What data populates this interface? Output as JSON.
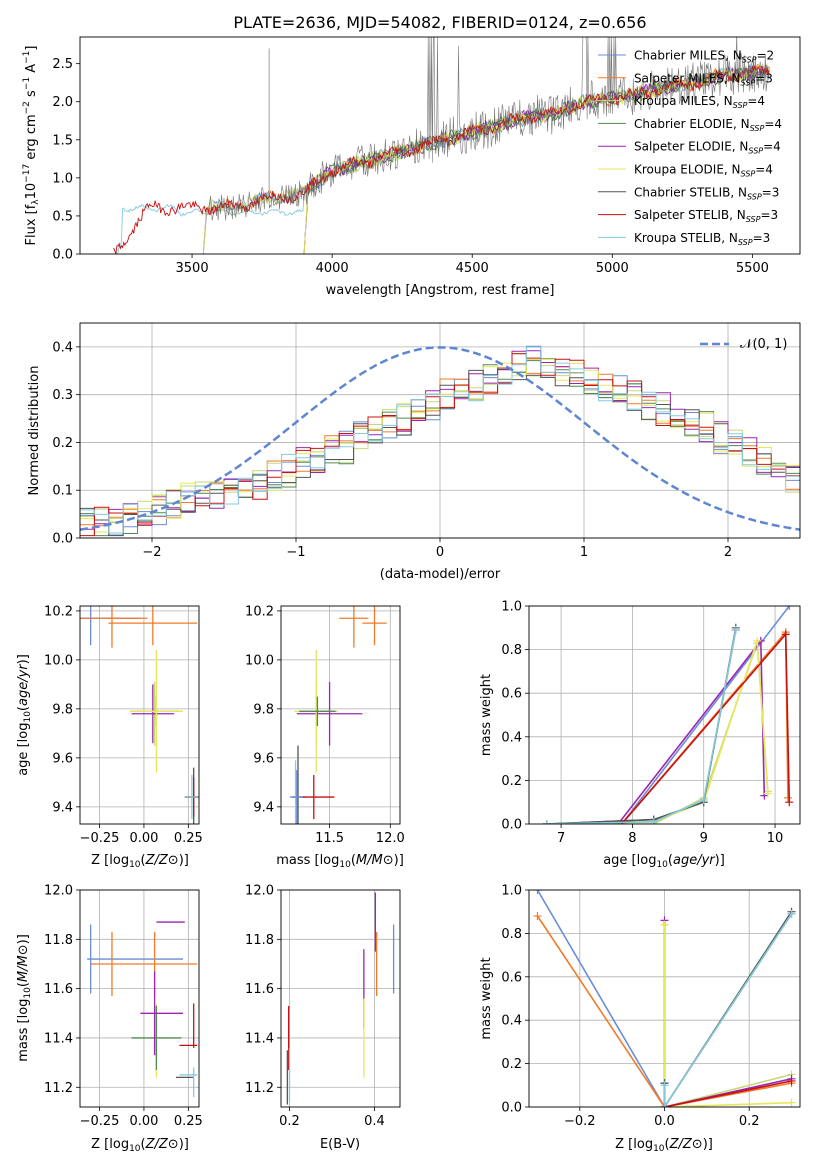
{
  "title": "PLATE=2636, MJD=54082, FIBERID=0124, z=0.656",
  "colors": {
    "chabrier_miles": "#6b8dd6",
    "salpeter_miles": "#f07b2a",
    "kroupa_miles": "#c7d77c",
    "chabrier_elodie": "#4f8a4f",
    "salpeter_elodie": "#9b27b0",
    "kroupa_elodie": "#e7e75a",
    "chabrier_stelib": "#555555",
    "salpeter_stelib": "#c81010",
    "kroupa_stelib": "#86c9dd",
    "normal_curve": "#5f86d2"
  },
  "chart_data": [
    {
      "id": "spectrum",
      "type": "line",
      "title": "PLATE=2636, MJD=54082, FIBERID=0124, z=0.656",
      "xlabel": "wavelength [Angstrom, rest frame]",
      "ylabel": "Flux [f_λ 10^-17 erg cm^-2 s^-1 A^-1]",
      "xlim": [
        3100,
        5670
      ],
      "ylim": [
        0,
        2.85
      ],
      "xticks": [
        3500,
        4000,
        4500,
        5000,
        5500
      ],
      "yticks": [
        0.0,
        0.5,
        1.0,
        1.5,
        2.0,
        2.5
      ],
      "legend": "upper right",
      "grid": false,
      "legend_entries": [
        {
          "key": "chabrier_miles",
          "label": "Chabrier MILES, N",
          "sub": "SSP",
          "suffix": "=2"
        },
        {
          "key": "salpeter_miles",
          "label": "Salpeter MILES, N",
          "sub": "SSP",
          "suffix": "=3"
        },
        {
          "key": "kroupa_miles",
          "label": "Kroupa MILES, N",
          "sub": "SSP",
          "suffix": "=4"
        },
        {
          "key": "chabrier_elodie",
          "label": "Chabrier ELODIE, N",
          "sub": "SSP",
          "suffix": "=4"
        },
        {
          "key": "salpeter_elodie",
          "label": "Salpeter ELODIE, N",
          "sub": "SSP",
          "suffix": "=4"
        },
        {
          "key": "kroupa_elodie",
          "label": "Kroupa ELODIE, N",
          "sub": "SSP",
          "suffix": "=4"
        },
        {
          "key": "chabrier_stelib",
          "label": "Chabrier STELIB, N",
          "sub": "SSP",
          "suffix": "=3"
        },
        {
          "key": "salpeter_stelib",
          "label": "Salpeter STELIB, N",
          "sub": "SSP",
          "suffix": "=3"
        },
        {
          "key": "kroupa_stelib",
          "label": "Kroupa STELIB, N",
          "sub": "SSP",
          "suffix": "=3"
        }
      ],
      "data_shape": {
        "x": [
          3220,
          3350,
          3500,
          3650,
          3800,
          3900,
          4000,
          4100,
          4200,
          4300,
          4400,
          4500,
          4600,
          4700,
          4800,
          4900,
          5000,
          5100,
          5200,
          5300,
          5400,
          5540
        ],
        "y": [
          0.0,
          0.62,
          0.6,
          0.62,
          0.75,
          0.8,
          1.1,
          1.2,
          1.3,
          1.4,
          1.5,
          1.6,
          1.7,
          1.8,
          1.85,
          2.0,
          2.05,
          2.1,
          2.2,
          2.25,
          2.35,
          2.4
        ]
      },
      "model_starts": {
        "kroupa_stelib": 3220,
        "chabrier_stelib": 3220,
        "salpeter_stelib": 3220,
        "salpeter_miles": 3540,
        "chabrier_miles": 3540,
        "kroupa_miles": 3540,
        "chabrier_elodie": 3900,
        "salpeter_elodie": 3900,
        "kroupa_elodie": 3900
      }
    },
    {
      "id": "residual_hist",
      "type": "step",
      "xlabel": "(data-model)/error",
      "ylabel": "Normed distribution",
      "xlim": [
        -2.5,
        2.5
      ],
      "ylim": [
        0,
        0.45
      ],
      "xticks": [
        -2,
        -1,
        0,
        1,
        2
      ],
      "xtick_labels": [
        "−2",
        "−1",
        "0",
        "1",
        "2"
      ],
      "yticks": [
        0.0,
        0.1,
        0.2,
        0.3,
        0.4
      ],
      "grid": true,
      "legend": "upper right",
      "normal_label": "N(0, 1)",
      "bin_width": 0.1,
      "base_histogram": [
        0.03,
        0.03,
        0.04,
        0.04,
        0.05,
        0.06,
        0.07,
        0.08,
        0.09,
        0.09,
        0.1,
        0.1,
        0.11,
        0.13,
        0.14,
        0.16,
        0.17,
        0.18,
        0.19,
        0.21,
        0.23,
        0.24,
        0.25,
        0.26,
        0.28,
        0.3,
        0.31,
        0.32,
        0.33,
        0.35,
        0.36,
        0.37,
        0.36,
        0.35,
        0.34,
        0.33,
        0.32,
        0.31,
        0.3,
        0.28,
        0.27,
        0.26,
        0.24,
        0.23,
        0.21,
        0.2,
        0.18,
        0.16,
        0.14,
        0.12
      ]
    },
    {
      "id": "z_age",
      "type": "errorbar",
      "xlabel": "Z [log10(Z/Z⊙)]",
      "ylabel": "age  [log10(age/yr)]",
      "xlim": [
        -0.36,
        0.31
      ],
      "ylim": [
        9.33,
        10.22
      ],
      "xticks": [
        -0.25,
        0.0,
        0.25
      ],
      "xtick_labels": [
        "−0.25",
        "0.00",
        "0.25"
      ],
      "yticks": [
        9.4,
        9.6,
        9.8,
        10.0,
        10.2
      ],
      "grid": true,
      "points": [
        {
          "key": "chabrier_miles",
          "x": -0.3,
          "xerr": 0.28,
          "y": 10.17,
          "yerr": 0.11
        },
        {
          "key": "salpeter_miles",
          "x": -0.18,
          "xerr": 0.2,
          "y": 10.17,
          "yerr": 0.12
        },
        {
          "key": "kroupa_miles",
          "x": 0.06,
          "xerr": 0.02,
          "y": 9.78,
          "yerr": 0.13
        },
        {
          "key": "chabrier_elodie",
          "x": 0.07,
          "xerr": 0.13,
          "y": 9.79,
          "yerr": 0.06
        },
        {
          "key": "salpeter_elodie",
          "x": 0.05,
          "xerr": 0.12,
          "y": 9.78,
          "yerr": 0.12
        },
        {
          "key": "kroupa_elodie",
          "x": 0.07,
          "xerr": 0.15,
          "y": 9.79,
          "yerr": 0.25
        },
        {
          "key": "chabrier_stelib",
          "x": 0.28,
          "xerr": 0.05,
          "y": 9.44,
          "yerr": 0.12
        },
        {
          "key": "salpeter_stelib",
          "x": 0.28,
          "xerr": 0.05,
          "y": 9.44,
          "yerr": 0.08
        },
        {
          "key": "kroupa_stelib",
          "x": 0.27,
          "xerr": 0.04,
          "y": 9.44,
          "yerr": 0.09
        },
        {
          "key": "salpeter_stelib_2",
          "color_key": "salpeter_miles",
          "x": 0.05,
          "xerr": 0.25,
          "y": 10.15,
          "yerr": 0.09,
          "alt": true
        }
      ]
    },
    {
      "id": "mass_age",
      "type": "errorbar",
      "xlabel": "mass [log10(M/M⊙)]",
      "xlim": [
        11.1,
        12.08
      ],
      "ylim": [
        9.33,
        10.22
      ],
      "xticks": [
        11.5,
        12.0
      ],
      "xtick_labels": [
        "11.5",
        "12.0"
      ],
      "yticks": [
        9.4,
        9.6,
        9.8,
        10.0,
        10.2
      ],
      "grid": true,
      "points": [
        {
          "key": "salpeter_miles",
          "x": 11.7,
          "xerr": 0.12,
          "y": 10.17,
          "yerr": 0.12
        },
        {
          "key": "salpeter_elodie",
          "x": 11.87,
          "xerr": 0.1,
          "y": 10.15,
          "yerr": 0.09,
          "color_key": "salpeter_miles"
        },
        {
          "key": "kroupa_miles",
          "x": 11.39,
          "xerr": 0.14,
          "y": 9.79,
          "yerr": 0.13
        },
        {
          "key": "salpeter_elodie_b",
          "color_key": "salpeter_elodie",
          "x": 11.5,
          "xerr": 0.27,
          "y": 9.78,
          "yerr": 0.13
        },
        {
          "key": "kroupa_elodie",
          "x": 11.39,
          "xerr": 0.18,
          "y": 9.79,
          "yerr": 0.25
        },
        {
          "key": "chabrier_elodie",
          "x": 11.4,
          "xerr": 0.15,
          "y": 9.79,
          "yerr": 0.06
        },
        {
          "key": "chabrier_stelib",
          "x": 11.24,
          "xerr": 0.06,
          "y": 9.44,
          "yerr": 0.21
        },
        {
          "key": "salpeter_stelib",
          "x": 11.37,
          "xerr": 0.17,
          "y": 9.44,
          "yerr": 0.09
        },
        {
          "key": "kroupa_stelib",
          "x": 11.22,
          "xerr": 0.05,
          "y": 9.44,
          "yerr": 0.15
        },
        {
          "key": "chabrier_miles",
          "x": 11.23,
          "xerr": 0.05,
          "y": 9.44,
          "yerr": 0.11
        }
      ]
    },
    {
      "id": "weight_age",
      "type": "line",
      "xlabel": "age  [log10(age/yr)]",
      "ylabel": "mass weight",
      "xlim": [
        6.55,
        10.35
      ],
      "ylim": [
        0,
        1.0
      ],
      "xticks": [
        7,
        8,
        9,
        10
      ],
      "yticks": [
        0.0,
        0.2,
        0.4,
        0.6,
        0.8,
        1.0
      ],
      "grid": true,
      "series": [
        {
          "key": "chabrier_miles",
          "x": [
            7.85,
            10.2
          ],
          "y": [
            0.0,
            1.0
          ]
        },
        {
          "key": "salpeter_miles",
          "x": [
            7.85,
            10.15,
            10.18
          ],
          "y": [
            0.0,
            0.88,
            0.12
          ]
        },
        {
          "key": "kroupa_miles",
          "x": [
            6.8,
            8.3,
            9.0,
            9.75,
            9.9
          ],
          "y": [
            0.0,
            0.0,
            0.12,
            0.83,
            0.15
          ]
        },
        {
          "key": "chabrier_elodie",
          "x": [
            6.8,
            8.3,
            9.0,
            9.45
          ],
          "y": [
            0.0,
            0.02,
            0.1,
            0.89
          ]
        },
        {
          "key": "salpeter_elodie",
          "x": [
            7.8,
            9.8,
            9.85
          ],
          "y": [
            0.0,
            0.84,
            0.13
          ]
        },
        {
          "key": "kroupa_elodie",
          "x": [
            6.8,
            8.3,
            9.0,
            9.75,
            9.9
          ],
          "y": [
            0.0,
            0.01,
            0.1,
            0.84,
            0.14
          ]
        },
        {
          "key": "chabrier_stelib",
          "x": [
            6.8,
            8.3,
            9.0,
            9.45
          ],
          "y": [
            0.0,
            0.02,
            0.1,
            0.9
          ]
        },
        {
          "key": "salpeter_stelib",
          "x": [
            7.85,
            10.15,
            10.2
          ],
          "y": [
            0.0,
            0.87,
            0.1
          ]
        },
        {
          "key": "kroupa_stelib",
          "x": [
            6.8,
            8.3,
            9.0,
            9.45
          ],
          "y": [
            0.0,
            0.01,
            0.11,
            0.89
          ]
        }
      ]
    },
    {
      "id": "z_mass",
      "type": "errorbar",
      "xlabel": "Z [log10(Z/Z⊙)]",
      "ylabel": "mass [log10(M/M⊙)]",
      "xlim": [
        -0.36,
        0.31
      ],
      "ylim": [
        11.12,
        12.0
      ],
      "xticks": [
        -0.25,
        0.0,
        0.25
      ],
      "xtick_labels": [
        "−0.25",
        "0.00",
        "0.25"
      ],
      "yticks": [
        11.2,
        11.4,
        11.6,
        11.8,
        12.0
      ],
      "grid": true,
      "points": [
        {
          "key": "chabrier_miles",
          "x": -0.3,
          "xerr": 0.0,
          "y": 11.72,
          "yerr": 0.14
        },
        {
          "key": "chabrier_miles",
          "x": -0.05,
          "xerr": 0.27,
          "y": 11.72,
          "yerr": 0.0
        },
        {
          "key": "salpeter_miles",
          "x": -0.18,
          "xerr": 0.0,
          "y": 11.7,
          "yerr": 0.13
        },
        {
          "key": "salpeter_miles",
          "x": 0.0,
          "xerr": 0.3,
          "y": 11.7,
          "yerr": 0.0
        },
        {
          "key": "salpeter_miles",
          "x": 0.06,
          "xerr": 0.0,
          "y": 11.7,
          "yerr": 0.13
        },
        {
          "key": "kroupa_elodie",
          "x": 0.07,
          "xerr": 0.0,
          "y": 11.39,
          "yerr": 0.15
        },
        {
          "key": "chabrier_elodie",
          "x": 0.07,
          "xerr": 0.14,
          "y": 11.4,
          "yerr": 0.13
        },
        {
          "key": "salpeter_elodie",
          "x": 0.1,
          "xerr": 0.12,
          "y": 11.5,
          "yerr": 0.0
        },
        {
          "key": "salpeter_elodie",
          "x": 0.06,
          "xerr": 0.0,
          "y": 11.5,
          "yerr": 0.17
        },
        {
          "key": "salpeter_stelib",
          "x": 0.28,
          "xerr": 0.0,
          "y": 11.45,
          "yerr": 0.09
        },
        {
          "key": "salpeter_stelib",
          "x": 0.25,
          "xerr": 0.05,
          "y": 11.37,
          "yerr": 0.0
        },
        {
          "key": "chabrier_stelib",
          "x": 0.23,
          "xerr": 0.05,
          "y": 11.24,
          "yerr": 0.0
        },
        {
          "key": "kroupa_stelib",
          "x": 0.28,
          "xerr": 0.0,
          "y": 11.22,
          "yerr": 0.06
        },
        {
          "key": "kroupa_stelib",
          "x": 0.25,
          "xerr": 0.05,
          "y": 11.25,
          "yerr": 0.0
        },
        {
          "key": "chabrier_miles",
          "x": 0.15,
          "xerr": 0.08,
          "y": 11.87,
          "yerr": 0.0,
          "color_key": "salpeter_elodie"
        }
      ]
    },
    {
      "id": "ebv_mass",
      "type": "errorbar",
      "xlabel": "E(B-V)",
      "xlim": [
        0.18,
        0.46
      ],
      "ylim": [
        11.12,
        12.0
      ],
      "xticks": [
        0.2,
        0.4
      ],
      "xtick_labels": [
        "0.2",
        "0.4"
      ],
      "yticks": [
        11.2,
        11.4,
        11.6,
        11.8,
        12.0
      ],
      "grid": true,
      "points": [
        {
          "key": "chabrier_miles",
          "x": 0.445,
          "xerr": 0.0,
          "y": 11.72,
          "yerr": 0.14
        },
        {
          "key": "salpeter_miles",
          "x": 0.405,
          "xerr": 0.0,
          "y": 11.7,
          "yerr": 0.13
        },
        {
          "key": "salpeter_elodie",
          "x": 0.375,
          "xerr": 0.0,
          "y": 11.6,
          "yerr": 0.16
        },
        {
          "key": "kroupa_elodie",
          "x": 0.375,
          "xerr": 0.0,
          "y": 11.4,
          "yerr": 0.16
        },
        {
          "key": "salpeter_stelib",
          "x": 0.198,
          "xerr": 0.0,
          "y": 11.4,
          "yerr": 0.13
        },
        {
          "key": "kroupa_stelib",
          "x": 0.2,
          "xerr": 0.0,
          "y": 11.25,
          "yerr": 0.11
        },
        {
          "key": "chabrier_stelib",
          "x": 0.195,
          "xerr": 0.0,
          "y": 11.24,
          "yerr": 0.11
        },
        {
          "key": "salpeter_elodie",
          "x": 0.402,
          "xerr": 0.0,
          "y": 11.87,
          "yerr": 0.12,
          "color_key": "salpeter_elodie"
        }
      ]
    },
    {
      "id": "weight_z",
      "type": "line",
      "xlabel": "Z [log10(Z/Z⊙)]",
      "ylabel": "mass weight",
      "xlim": [
        -0.32,
        0.32
      ],
      "ylim": [
        0,
        1.0
      ],
      "xticks": [
        -0.2,
        0.0,
        0.2
      ],
      "xtick_labels": [
        "−0.2",
        "0.0",
        "0.2"
      ],
      "yticks": [
        0.0,
        0.2,
        0.4,
        0.6,
        0.8,
        1.0
      ],
      "grid": true,
      "series": [
        {
          "key": "chabrier_miles",
          "x": [
            -0.3,
            0.0
          ],
          "y": [
            1.0,
            0.0
          ]
        },
        {
          "key": "salpeter_miles",
          "x": [
            -0.3,
            0.0,
            0.3
          ],
          "y": [
            0.88,
            0.0,
            0.11
          ]
        },
        {
          "key": "kroupa_miles",
          "x": [
            0.0,
            0.0,
            0.3
          ],
          "y": [
            0.84,
            0.0,
            0.15
          ]
        },
        {
          "key": "chabrier_elodie",
          "x": [
            0.0,
            0.0,
            0.3
          ],
          "y": [
            0.11,
            0.0,
            0.89
          ]
        },
        {
          "key": "salpeter_elodie",
          "x": [
            0.0,
            0.0,
            0.3
          ],
          "y": [
            0.86,
            0.0,
            0.13
          ]
        },
        {
          "key": "kroupa_elodie",
          "x": [
            0.0,
            0.0,
            0.3
          ],
          "y": [
            0.84,
            0.0,
            0.02
          ]
        },
        {
          "key": "chabrier_stelib",
          "x": [
            0.0,
            0.0,
            0.3
          ],
          "y": [
            0.11,
            0.0,
            0.9
          ]
        },
        {
          "key": "salpeter_stelib",
          "x": [
            0.0,
            0.3
          ],
          "y": [
            0.0,
            0.12
          ]
        },
        {
          "key": "kroupa_stelib",
          "x": [
            0.0,
            0.0,
            0.3
          ],
          "y": [
            0.1,
            0.0,
            0.89
          ]
        }
      ]
    }
  ]
}
